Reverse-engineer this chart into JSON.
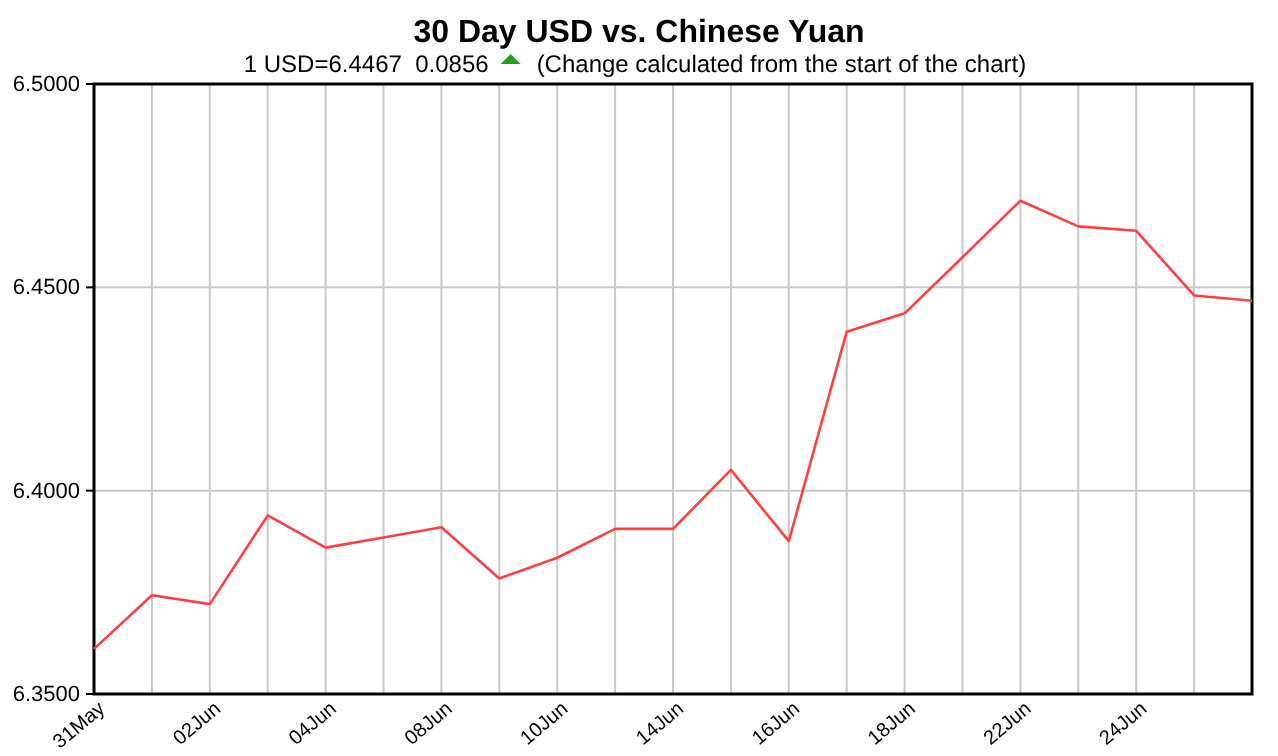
{
  "chart_data": {
    "type": "line",
    "title": "30 Day USD vs. Chinese Yuan",
    "subtitle": "1 USD=6.4467  0.0856",
    "annotations": [
      "(Change calculated from the start of the chart)"
    ],
    "categories": [
      "31May",
      null,
      "02Jun",
      null,
      "04Jun",
      null,
      "08Jun",
      null,
      "10Jun",
      null,
      "14Jun",
      null,
      "16Jun",
      null,
      "18Jun",
      null,
      "22Jun",
      null,
      "24Jun",
      null,
      null
    ],
    "series": [
      {
        "color": "#ff4040",
        "values": [
          6.3611,
          6.3743,
          6.3721,
          6.3939,
          6.386,
          6.3885,
          6.391,
          6.3784,
          6.3835,
          6.3906,
          6.3906,
          6.4051,
          6.3876,
          6.4391,
          6.4436,
          6.4574,
          6.4713,
          6.465,
          6.4639,
          6.448,
          6.4467
        ]
      }
    ],
    "ylim": [
      6.35,
      6.5
    ],
    "yticks": [
      {
        "value": 6.35,
        "label": "6.3500"
      },
      {
        "value": 6.4,
        "label": "6.4000"
      },
      {
        "value": 6.45,
        "label": "6.4500"
      },
      {
        "value": 6.5,
        "label": "6.5000"
      }
    ],
    "grid": true,
    "marker": "none",
    "line_style": "solid"
  }
}
